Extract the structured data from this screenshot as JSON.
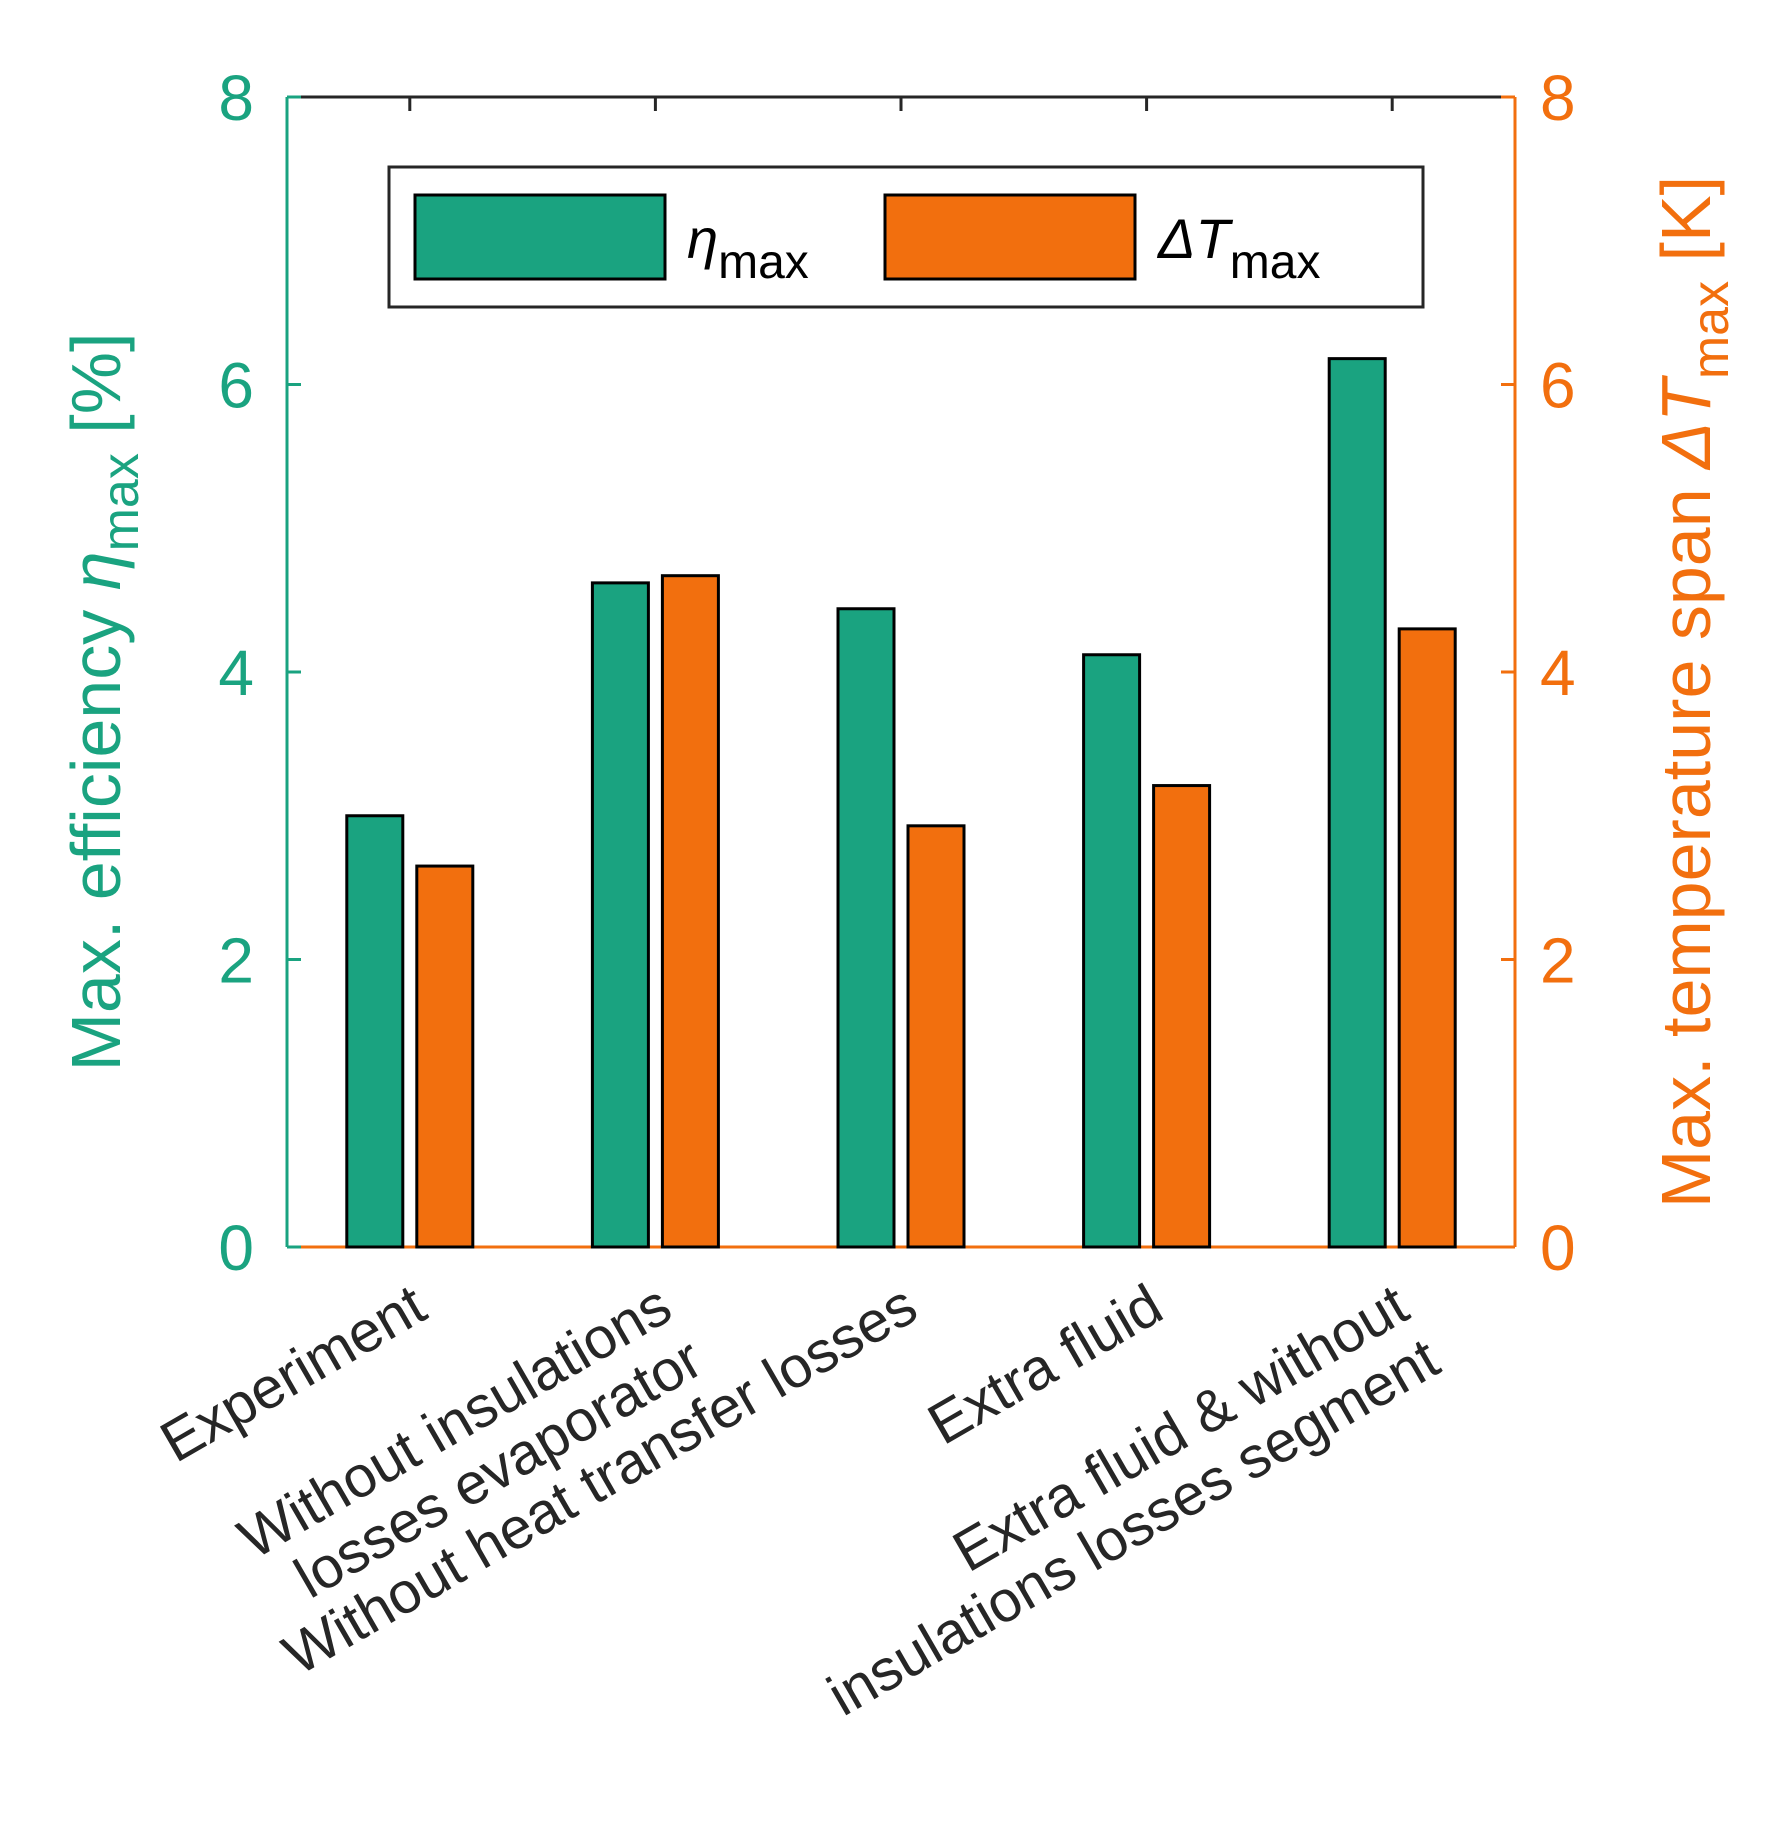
{
  "chart_data": {
    "type": "bar",
    "categories": [
      [
        "Experiment"
      ],
      [
        "Without insulations",
        "losses evaporator"
      ],
      [
        "Without heat transfer losses"
      ],
      [
        "Extra fluid"
      ],
      [
        "Extra fluid & without",
        "insulations losses segment"
      ]
    ],
    "series": [
      {
        "name": "η_max",
        "legend_symbol": "η",
        "legend_sub": "max",
        "axis": "left",
        "color": "#1aa380",
        "values": [
          3.0,
          4.62,
          4.44,
          4.12,
          6.18
        ]
      },
      {
        "name": "ΔT_max",
        "legend_symbol": "ΔT",
        "legend_sub": "max",
        "axis": "right",
        "color": "#f26f0e",
        "values": [
          2.65,
          4.67,
          2.93,
          3.21,
          4.3
        ]
      }
    ],
    "left_axis": {
      "label_prefix": "Max. efficiency ",
      "label_symbol": "η",
      "label_sub": "max",
      "label_suffix": " [%]",
      "ylim": [
        0,
        8
      ],
      "ticks": [
        "0",
        "2",
        "4",
        "6",
        "8"
      ],
      "color": "#1aa380"
    },
    "right_axis": {
      "label_prefix": "Max. temperature span ",
      "label_symbol": "ΔT",
      "label_sub": "max",
      "label_suffix": " [K]",
      "ylim": [
        0,
        8
      ],
      "ticks": [
        "0",
        "2",
        "4",
        "6",
        "8"
      ],
      "color": "#f26f0e"
    },
    "legend_position": "top-center"
  }
}
